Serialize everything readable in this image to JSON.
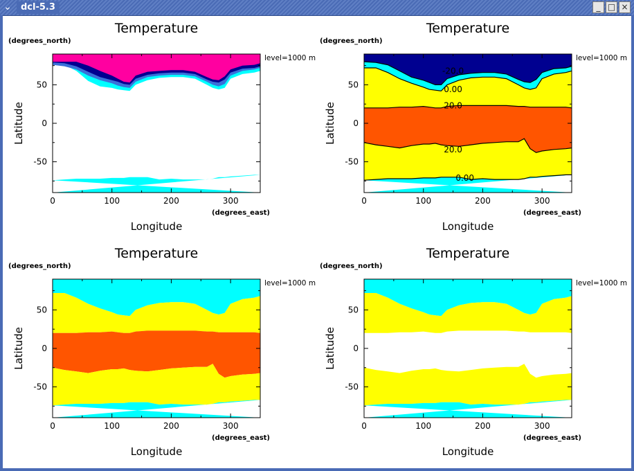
{
  "window": {
    "title": "dcl-5.3",
    "menu_icon": "chevron-down-icon",
    "buttons": {
      "minimize": "_",
      "maximize": "□",
      "close": "×"
    }
  },
  "colors": {
    "cyan": "#00ffff",
    "yellow": "#ffff00",
    "orange": "#ff5500",
    "navy": "#000090",
    "blue": "#0000ff",
    "steelblue": "#3a6fd9",
    "magenta": "#ff00a0",
    "line": "#000000"
  },
  "chart_data": [
    {
      "type": "heatmap",
      "title": "Temperature",
      "xlabel": "Longitude",
      "xunits": "(degrees_east)",
      "ylabel": "Latitude",
      "yunits": "(degrees_north)",
      "level_text": "level=1000 m",
      "xlim": [
        0,
        350
      ],
      "ylim": [
        -90,
        90
      ],
      "xticks": [
        0,
        100,
        200,
        300
      ],
      "yticks": [
        -50,
        0,
        50
      ],
      "shading": "cold-only",
      "contour_labels": []
    },
    {
      "type": "heatmap",
      "title": "Temperature",
      "xlabel": "Longitude",
      "xunits": "(degrees_east)",
      "ylabel": "Latitude",
      "yunits": "(degrees_north)",
      "level_text": "level=1000 m",
      "xlim": [
        0,
        350
      ],
      "ylim": [
        -90,
        90
      ],
      "xticks": [
        0,
        100,
        200,
        300
      ],
      "yticks": [
        -50,
        0,
        50
      ],
      "shading": "full-with-contours",
      "contour_labels": [
        {
          "text": "-20.0",
          "lon": 150,
          "lat": 68
        },
        {
          "text": "0.00",
          "lon": 150,
          "lat": 44
        },
        {
          "text": "20.0",
          "lon": 150,
          "lat": 23
        },
        {
          "text": "20.0",
          "lon": 150,
          "lat": -34
        },
        {
          "text": "0.00",
          "lon": 170,
          "lat": -71
        }
      ]
    },
    {
      "type": "heatmap",
      "title": "Temperature",
      "xlabel": "Longitude",
      "xunits": "(degrees_east)",
      "ylabel": "Latitude",
      "yunits": "(degrees_north)",
      "level_text": "level=1000 m",
      "xlim": [
        0,
        350
      ],
      "ylim": [
        -90,
        90
      ],
      "xticks": [
        0,
        100,
        200,
        300
      ],
      "yticks": [
        -50,
        0,
        50
      ],
      "shading": "bands-with-warm",
      "contour_labels": []
    },
    {
      "type": "heatmap",
      "title": "Temperature",
      "xlabel": "Longitude",
      "xunits": "(degrees_east)",
      "ylabel": "Latitude",
      "yunits": "(degrees_north)",
      "level_text": "level=1000 m",
      "xlim": [
        0,
        350
      ],
      "ylim": [
        -90,
        90
      ],
      "xticks": [
        0,
        100,
        200,
        300
      ],
      "yticks": [
        -50,
        0,
        50
      ],
      "shading": "bands-no-warm",
      "contour_labels": []
    }
  ]
}
